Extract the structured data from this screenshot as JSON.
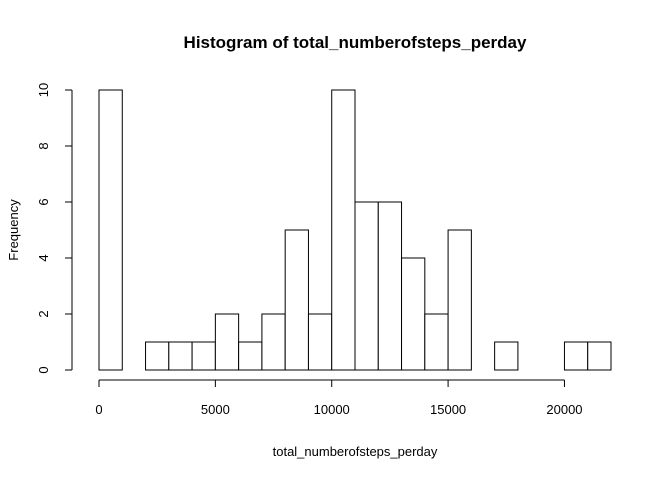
{
  "chart_data": {
    "type": "bar",
    "title": "Histogram of total_numberofsteps_perday",
    "xlabel": "total_numberofsteps_perday",
    "ylabel": "Frequency",
    "bin_width": 1000,
    "bins": [
      {
        "start": 0,
        "end": 1000,
        "count": 10
      },
      {
        "start": 1000,
        "end": 2000,
        "count": 0
      },
      {
        "start": 2000,
        "end": 3000,
        "count": 1
      },
      {
        "start": 3000,
        "end": 4000,
        "count": 1
      },
      {
        "start": 4000,
        "end": 5000,
        "count": 1
      },
      {
        "start": 5000,
        "end": 6000,
        "count": 2
      },
      {
        "start": 6000,
        "end": 7000,
        "count": 1
      },
      {
        "start": 7000,
        "end": 8000,
        "count": 2
      },
      {
        "start": 8000,
        "end": 9000,
        "count": 5
      },
      {
        "start": 9000,
        "end": 10000,
        "count": 2
      },
      {
        "start": 10000,
        "end": 11000,
        "count": 10
      },
      {
        "start": 11000,
        "end": 12000,
        "count": 6
      },
      {
        "start": 12000,
        "end": 13000,
        "count": 6
      },
      {
        "start": 13000,
        "end": 14000,
        "count": 4
      },
      {
        "start": 14000,
        "end": 15000,
        "count": 2
      },
      {
        "start": 15000,
        "end": 16000,
        "count": 5
      },
      {
        "start": 16000,
        "end": 17000,
        "count": 0
      },
      {
        "start": 17000,
        "end": 18000,
        "count": 1
      },
      {
        "start": 18000,
        "end": 19000,
        "count": 0
      },
      {
        "start": 19000,
        "end": 20000,
        "count": 0
      },
      {
        "start": 20000,
        "end": 21000,
        "count": 1
      },
      {
        "start": 21000,
        "end": 22000,
        "count": 1
      }
    ],
    "xlim": [
      0,
      22000
    ],
    "ylim": [
      0,
      10
    ],
    "xticks": [
      0,
      5000,
      10000,
      15000,
      20000
    ],
    "xtick_labels": [
      "0",
      "5000",
      "10000",
      "15000",
      "20000"
    ],
    "yticks": [
      0,
      2,
      4,
      6,
      8,
      10
    ],
    "ytick_labels": [
      "0",
      "2",
      "4",
      "6",
      "8",
      "10"
    ],
    "grid": false,
    "legend": "none",
    "colors": {
      "bar_fill": "#ffffff",
      "bar_stroke": "#000000"
    }
  }
}
